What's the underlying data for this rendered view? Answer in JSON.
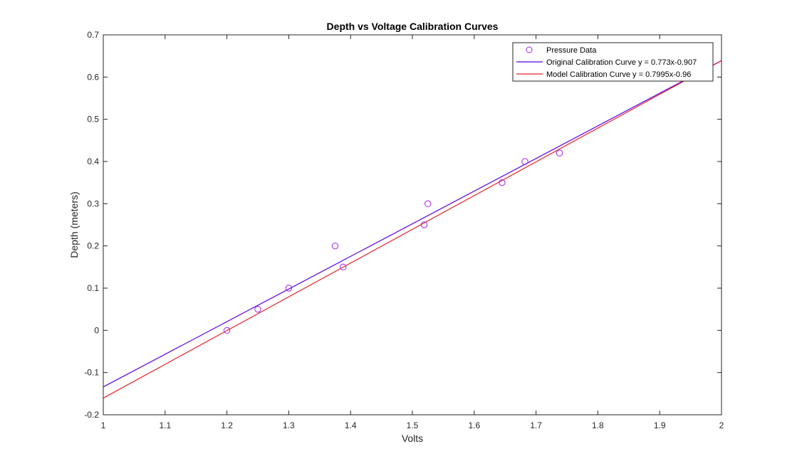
{
  "chart_data": {
    "type": "scatter",
    "title": "Depth vs Voltage Calibration Curves",
    "xlabel": "Volts",
    "ylabel": "Depth (meters)",
    "xlim": [
      1,
      2
    ],
    "ylim": [
      -0.2,
      0.7
    ],
    "xticks": [
      1,
      1.1,
      1.2,
      1.3,
      1.4,
      1.5,
      1.6,
      1.7,
      1.8,
      1.9,
      2
    ],
    "yticks": [
      -0.2,
      -0.1,
      0,
      0.1,
      0.2,
      0.3,
      0.4,
      0.5,
      0.6,
      0.7
    ],
    "grid": false,
    "legend_position": "top-right",
    "series": [
      {
        "name": "Pressure Data",
        "kind": "scatter",
        "marker": "circle",
        "color": "#a020f0",
        "x": [
          1.2,
          1.25,
          1.3,
          1.375,
          1.388,
          1.519,
          1.525,
          1.645,
          1.682,
          1.738
        ],
        "y": [
          0.0,
          0.05,
          0.1,
          0.2,
          0.15,
          0.25,
          0.3,
          0.35,
          0.4,
          0.42
        ]
      },
      {
        "name": "Original Calibration Curve y = 0.773x-0.907",
        "kind": "line",
        "color": "#5a00e6",
        "slope": 0.773,
        "intercept": -0.907
      },
      {
        "name": "Model Calibration Curve y = 0.7995x-0.96",
        "kind": "line",
        "color": "#e8232a",
        "slope": 0.7995,
        "intercept": -0.96
      }
    ]
  }
}
